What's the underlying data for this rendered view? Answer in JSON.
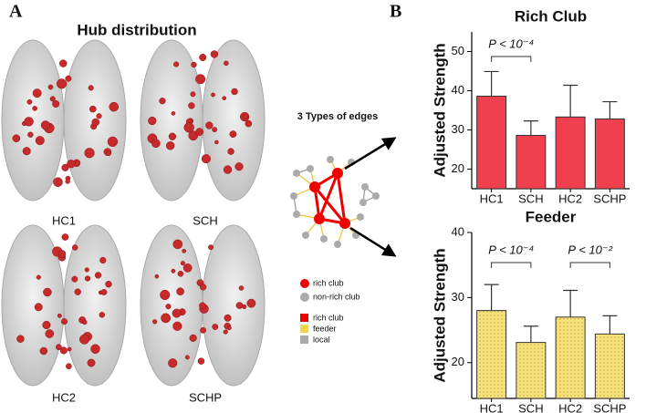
{
  "panel_a": {
    "label": "A",
    "title": "Hub distribution",
    "groups": [
      "HC1",
      "SCH",
      "HC2",
      "SCHP"
    ],
    "edges_title": "3 Types of edges",
    "node_legend": [
      "rich club",
      "non-rich club"
    ],
    "edge_legend": [
      "rich club",
      "feeder",
      "local"
    ]
  },
  "panel_b_label": "B",
  "chart_data": [
    {
      "type": "bar",
      "title": "Rich Club",
      "y_label": "Adjusted Strength",
      "categories": [
        "HC1",
        "SCH",
        "HC2",
        "SCHP"
      ],
      "values": [
        38.6,
        28.6,
        33.3,
        32.8
      ],
      "errors": [
        6.3,
        3.7,
        8.1,
        4.4
      ],
      "color": "#f0404f",
      "ylim": [
        15,
        55
      ],
      "yticks": [
        20,
        30,
        40,
        50
      ],
      "annotations": [
        {
          "text": "P < 10⁻⁴"
        }
      ]
    },
    {
      "type": "bar",
      "title": "Feeder",
      "y_label": "Adjusted Strength",
      "categories": [
        "HC1",
        "SCH",
        "HC2",
        "SCHP"
      ],
      "values": [
        28.0,
        23.1,
        27.0,
        24.4
      ],
      "errors": [
        4.0,
        2.5,
        4.1,
        2.8
      ],
      "color": "#f7e27a",
      "ylim": [
        14.5,
        40
      ],
      "yticks": [
        20,
        30,
        40
      ],
      "annotations": [
        {
          "text": "P < 10⁻⁴"
        },
        {
          "text": "P < 10⁻²"
        }
      ]
    }
  ]
}
